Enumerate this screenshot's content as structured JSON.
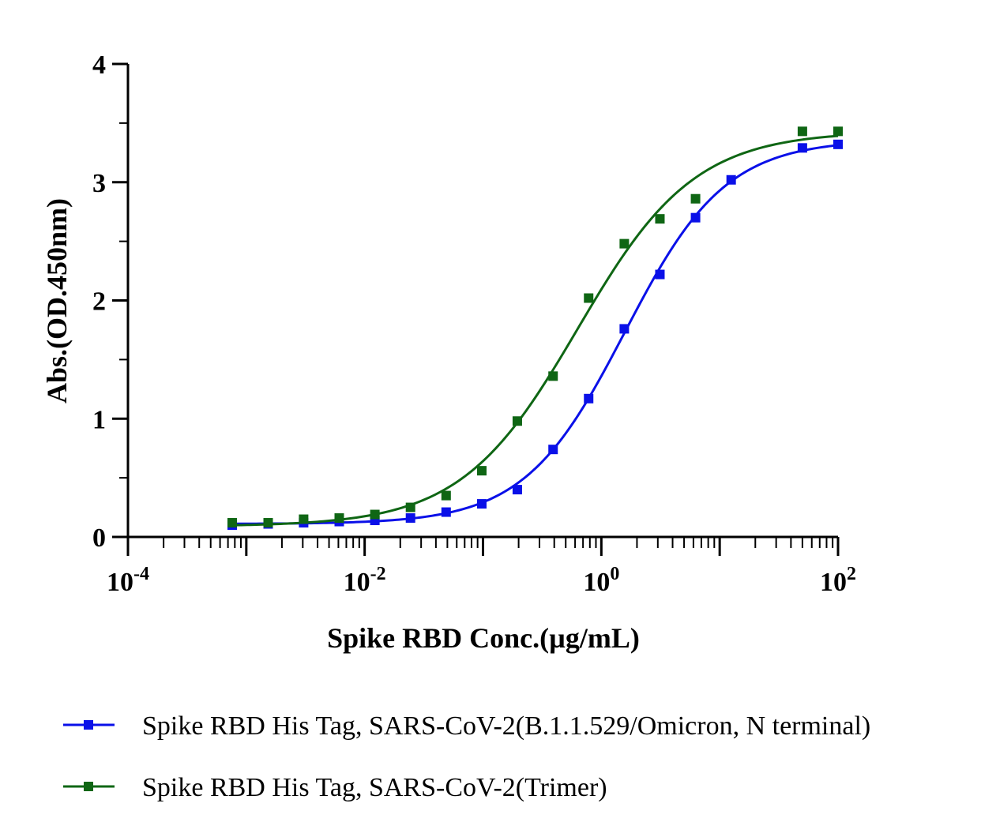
{
  "chart_data": {
    "type": "scatter",
    "title": "",
    "xlabel": "Spike RBD Conc.(µg/mL)",
    "ylabel": "Abs.(OD.450nm)",
    "xscale": "log",
    "xlim": [
      0.0001,
      100
    ],
    "ylim": [
      0,
      4
    ],
    "x_ticks": [
      {
        "base": "10",
        "exp": "-4",
        "value": 0.0001
      },
      {
        "base": "10",
        "exp": "-2",
        "value": 0.01
      },
      {
        "base": "10",
        "exp": "0",
        "value": 1
      },
      {
        "base": "10",
        "exp": "2",
        "value": 100
      }
    ],
    "y_ticks": [
      "0",
      "1",
      "2",
      "3",
      "4"
    ],
    "grid": false,
    "legend_position": "bottom",
    "series": [
      {
        "name": "Spike RBD His Tag, SARS-CoV-2(B.1.1.529/Omicron, N terminal)",
        "color": "#0a10e8",
        "marker": "square",
        "fit": "4PL",
        "x": [
          0.00076,
          0.00153,
          0.00305,
          0.0061,
          0.0122,
          0.0244,
          0.0488,
          0.0977,
          0.195,
          0.391,
          0.781,
          1.563,
          3.125,
          6.25,
          12.5,
          50,
          100
        ],
        "y": [
          0.1,
          0.11,
          0.12,
          0.13,
          0.14,
          0.16,
          0.21,
          0.28,
          0.4,
          0.74,
          1.17,
          1.76,
          2.22,
          2.7,
          3.02,
          3.29,
          3.32
        ]
      },
      {
        "name": "Spike RBD His Tag, SARS-CoV-2(Trimer)",
        "color": "#0f6614",
        "marker": "square",
        "fit": "4PL",
        "x": [
          0.00076,
          0.00153,
          0.00305,
          0.0061,
          0.0122,
          0.0244,
          0.0488,
          0.0977,
          0.195,
          0.391,
          0.781,
          1.563,
          3.125,
          6.25,
          50,
          100
        ],
        "y": [
          0.12,
          0.12,
          0.15,
          0.16,
          0.19,
          0.25,
          0.35,
          0.56,
          0.98,
          1.36,
          2.02,
          2.48,
          2.69,
          2.86,
          3.43,
          3.43
        ]
      }
    ]
  }
}
